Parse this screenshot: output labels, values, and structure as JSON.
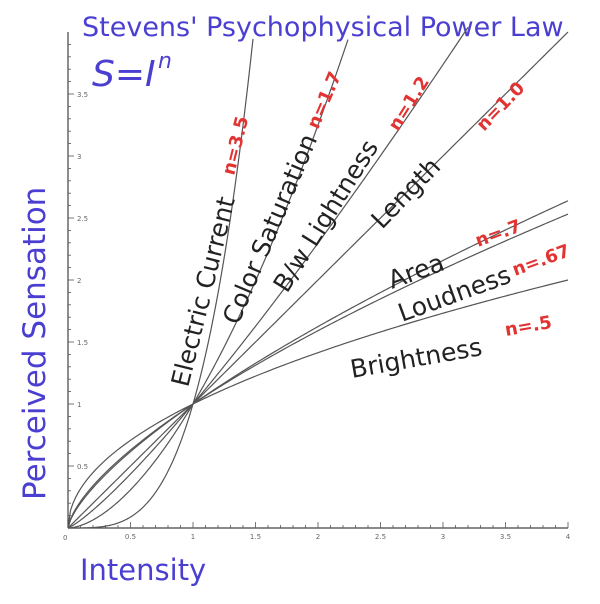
{
  "chart_data": {
    "type": "line",
    "title": "Stevens' Psychophysical Power Law",
    "subtitle": "S=I",
    "subtitle_superscript": "n",
    "xlabel": "Intensity",
    "ylabel": "Perceived Sensation",
    "xlim": [
      0,
      4
    ],
    "ylim": [
      0,
      4
    ],
    "x_ticks": [
      "0.5",
      "1",
      "1.5",
      "2",
      "2.5",
      "3",
      "3.5",
      "4"
    ],
    "y_ticks": [
      "0.5",
      "1",
      "1.5",
      "2",
      "2.5",
      "3",
      "3.5"
    ],
    "grid": false,
    "series": [
      {
        "name": "Electric Current",
        "exponent": 3.5,
        "exponent_label": "n=3.5",
        "x_max": 1.48
      },
      {
        "name": "Color Saturation",
        "exponent": 1.7,
        "exponent_label": "n=1.7",
        "x_max": 2.24
      },
      {
        "name": "B/w Lightness",
        "exponent": 1.2,
        "exponent_label": "n=1.2",
        "x_max": 3.2
      },
      {
        "name": "Length",
        "exponent": 1.0,
        "exponent_label": "n=1.0",
        "x_max": 4.0
      },
      {
        "name": "Area",
        "exponent": 0.7,
        "exponent_label": "n=.7",
        "x_max": 4.0
      },
      {
        "name": "Loudness",
        "exponent": 0.67,
        "exponent_label": "n=.67",
        "x_max": 4.0
      },
      {
        "name": "Brightness",
        "exponent": 0.5,
        "exponent_label": "n=.5",
        "x_max": 4.0
      }
    ]
  },
  "colors": {
    "handwriting_blue": "#4b3fd1",
    "exponent_red": "#e23333",
    "curve_gray": "#555555",
    "label_black": "#222222"
  }
}
